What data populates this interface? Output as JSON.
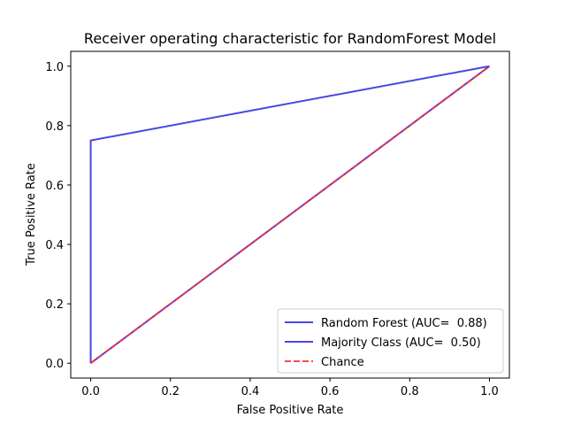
{
  "chart_data": {
    "type": "line",
    "title": "Receiver operating characteristic for RandomForest Model",
    "xlabel": "False Positive Rate",
    "ylabel": "True Positive Rate",
    "xlim": [
      -0.05,
      1.05
    ],
    "ylim": [
      -0.05,
      1.05
    ],
    "xticks": [
      0.0,
      0.2,
      0.4,
      0.6,
      0.8,
      1.0
    ],
    "yticks": [
      0.0,
      0.2,
      0.4,
      0.6,
      0.8,
      1.0
    ],
    "xtick_labels": [
      "0.0",
      "0.2",
      "0.4",
      "0.6",
      "0.8",
      "1.0"
    ],
    "ytick_labels": [
      "0.0",
      "0.2",
      "0.4",
      "0.6",
      "0.8",
      "1.0"
    ],
    "grid": false,
    "legend_position": "lower-right",
    "series": [
      {
        "name": "Random Forest (AUC=  0.88)",
        "color": "#3333dd",
        "style": "solid",
        "x": [
          0.0,
          0.0,
          1.0
        ],
        "y": [
          0.0,
          0.75,
          1.0
        ]
      },
      {
        "name": "Majority Class (AUC=  0.50)",
        "color": "#3333dd",
        "style": "solid",
        "x": [
          0.0,
          1.0
        ],
        "y": [
          0.0,
          1.0
        ]
      },
      {
        "name": "Chance",
        "color": "#ff3333",
        "style": "dashed",
        "x": [
          0.0,
          1.0
        ],
        "y": [
          0.0,
          1.0
        ]
      }
    ]
  }
}
